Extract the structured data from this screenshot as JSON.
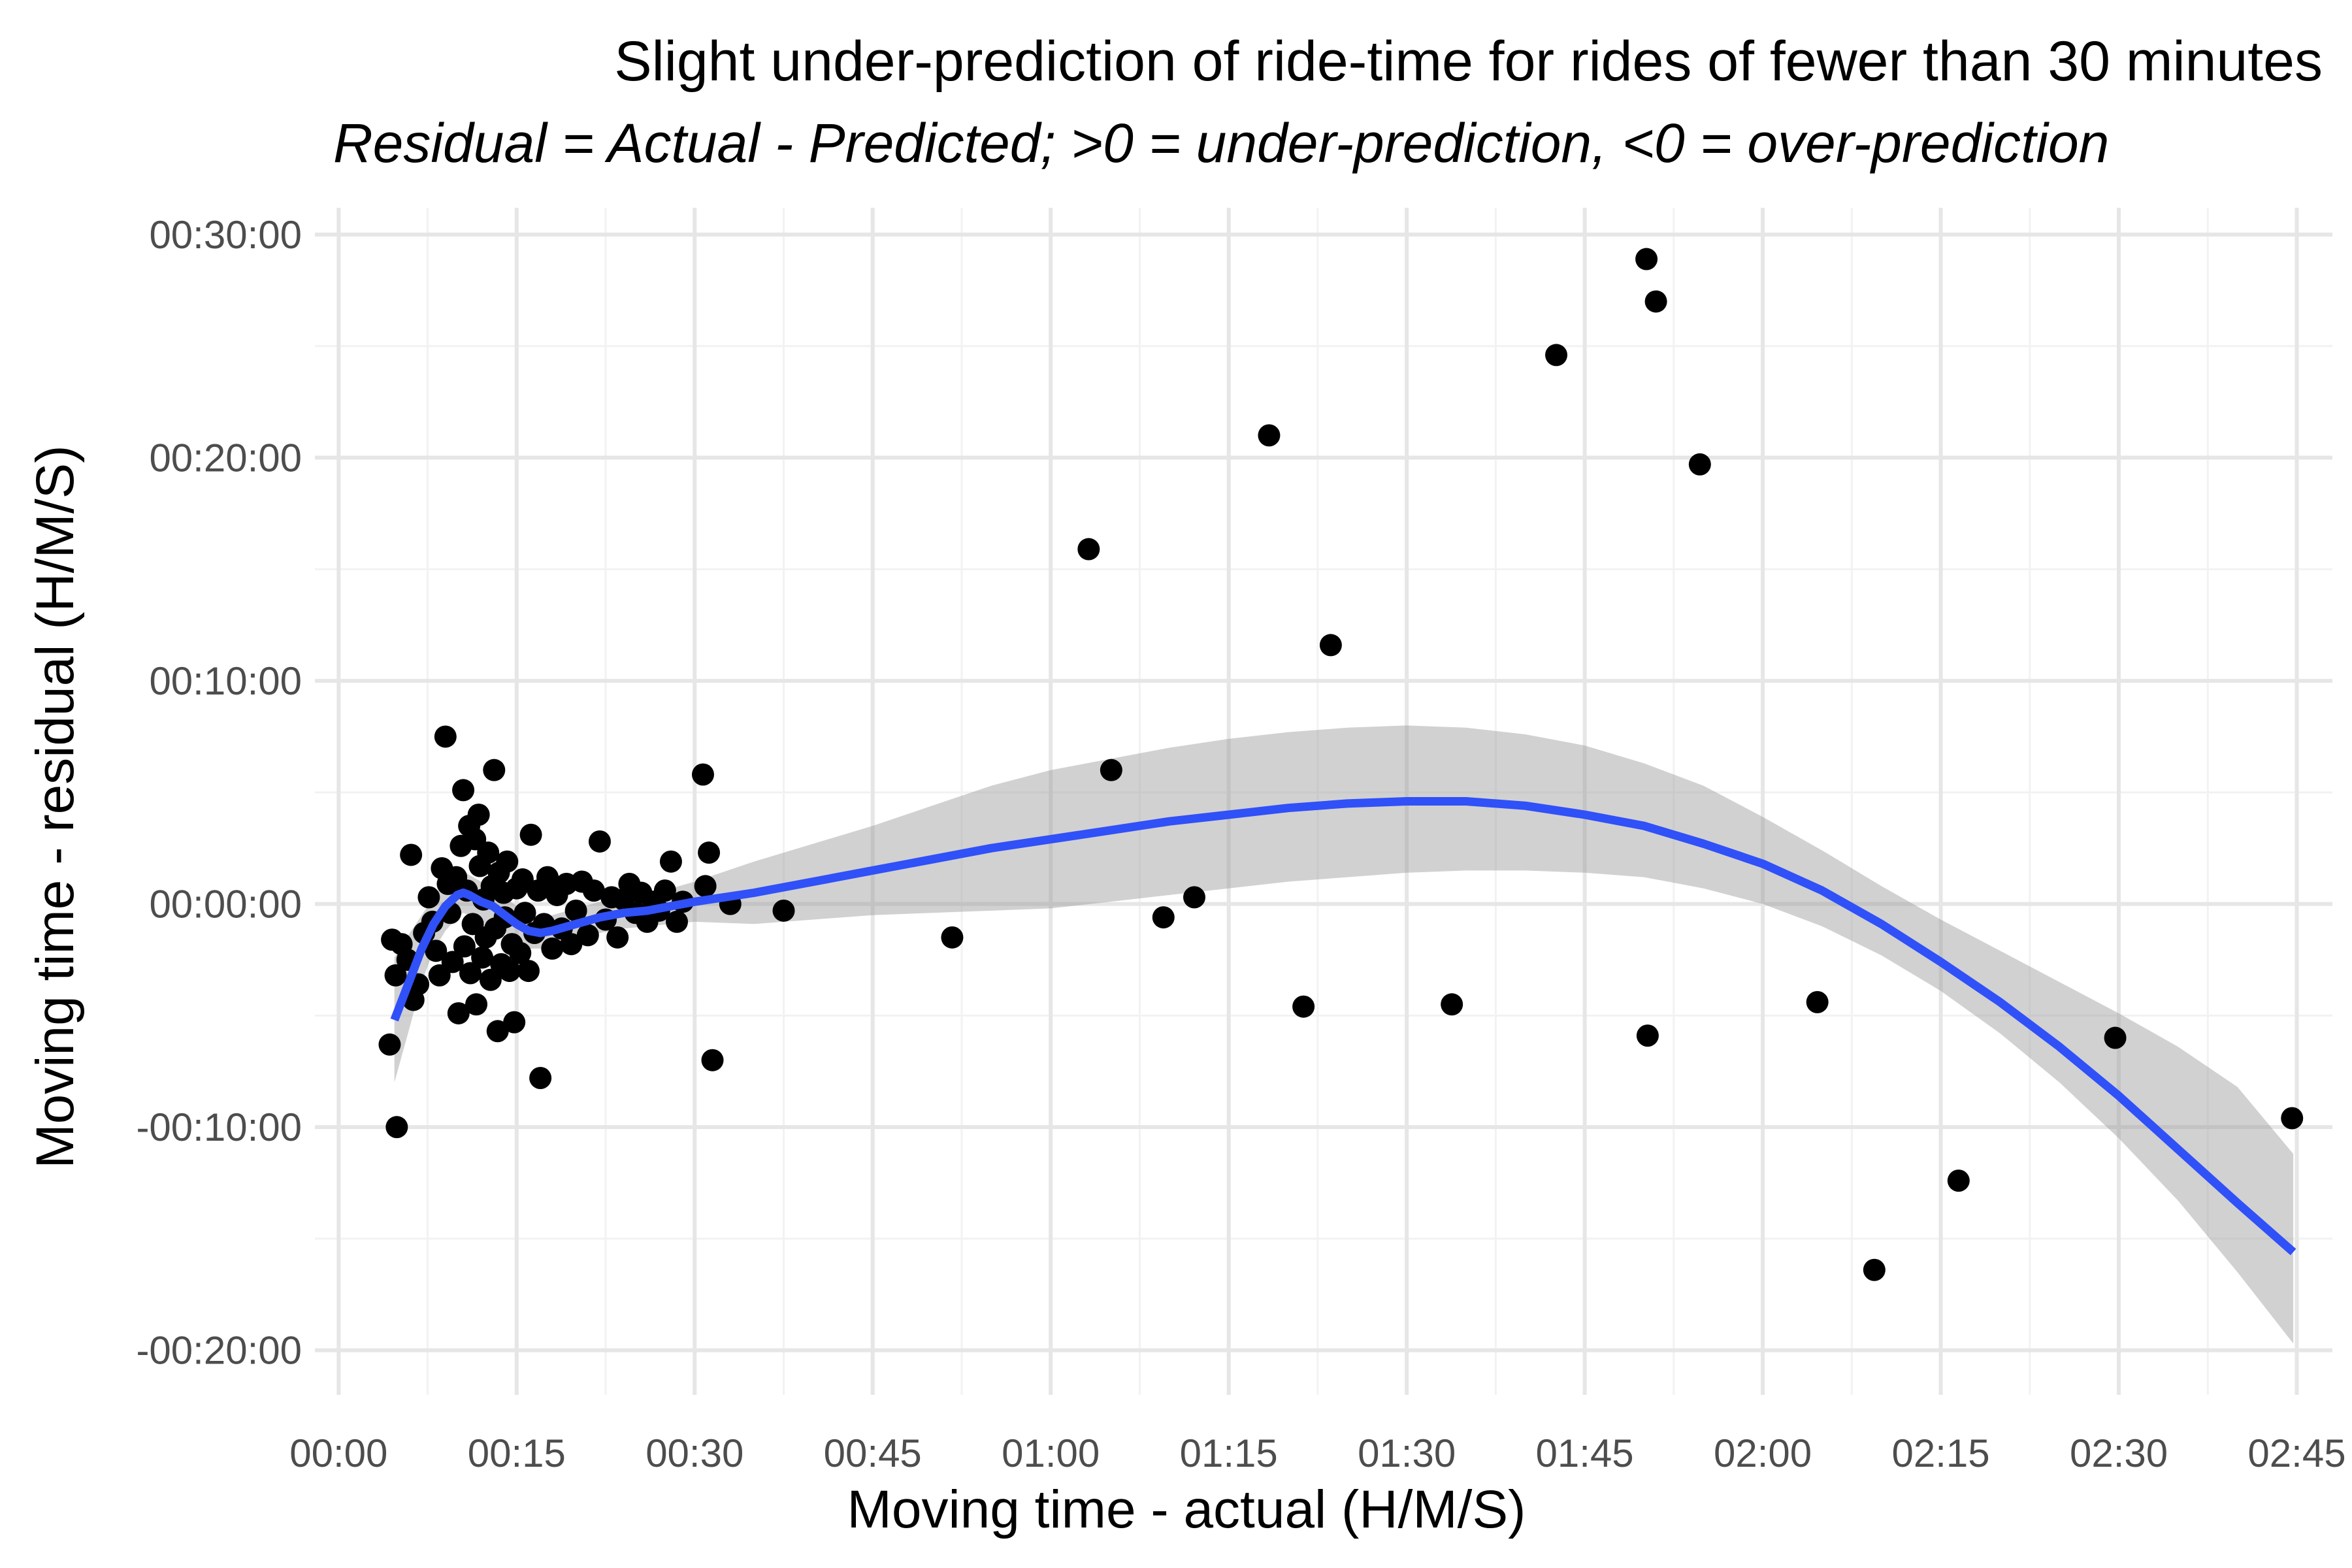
{
  "chart_data": {
    "type": "scatter",
    "title": "Slight under-prediction of ride-time for rides of fewer than 30 minutes",
    "subtitle": "Residual = Actual - Predicted; >0 = under-prediction, <0 = over-prediction",
    "xlabel": "Moving time - actual (H/M/S)",
    "ylabel": "Moving time - residual (H/M/S)",
    "x_unit": "minutes",
    "y_unit": "minutes",
    "xlim": [
      -2,
      168
    ],
    "ylim": [
      -22,
      31.2
    ],
    "x_ticks": [
      {
        "value": 0,
        "label": "00:00"
      },
      {
        "value": 15,
        "label": "00:15"
      },
      {
        "value": 30,
        "label": "00:30"
      },
      {
        "value": 45,
        "label": "00:45"
      },
      {
        "value": 60,
        "label": "01:00"
      },
      {
        "value": 75,
        "label": "01:15"
      },
      {
        "value": 90,
        "label": "01:30"
      },
      {
        "value": 105,
        "label": "01:45"
      },
      {
        "value": 120,
        "label": "02:00"
      },
      {
        "value": 135,
        "label": "02:15"
      },
      {
        "value": 150,
        "label": "02:30"
      },
      {
        "value": 165,
        "label": "02:45"
      }
    ],
    "y_ticks": [
      {
        "value": 30,
        "label": "00:30:00"
      },
      {
        "value": 20,
        "label": "00:20:00"
      },
      {
        "value": 10,
        "label": "00:10:00"
      },
      {
        "value": 0,
        "label": "00:00:00"
      },
      {
        "value": -10,
        "label": "-00:10:00"
      },
      {
        "value": -20,
        "label": "-00:20:00"
      }
    ],
    "grid": true,
    "points": [
      [
        4.3,
        -6.3
      ],
      [
        4.9,
        -10.0
      ],
      [
        4.5,
        -1.6
      ],
      [
        4.8,
        -3.2
      ],
      [
        5.3,
        -1.8
      ],
      [
        5.8,
        -2.5
      ],
      [
        6.1,
        2.2
      ],
      [
        6.3,
        -4.3
      ],
      [
        6.7,
        -3.6
      ],
      [
        7.2,
        -1.3
      ],
      [
        7.6,
        0.3
      ],
      [
        7.9,
        -0.8
      ],
      [
        8.2,
        -2.1
      ],
      [
        8.5,
        -3.2
      ],
      [
        8.7,
        1.6
      ],
      [
        9.0,
        7.5
      ],
      [
        9.2,
        0.9
      ],
      [
        9.4,
        -0.4
      ],
      [
        9.6,
        -2.6
      ],
      [
        9.9,
        1.2
      ],
      [
        10.1,
        -4.9
      ],
      [
        10.3,
        2.6
      ],
      [
        10.5,
        5.1
      ],
      [
        10.6,
        -1.9
      ],
      [
        10.8,
        0.6
      ],
      [
        11.0,
        3.5
      ],
      [
        11.1,
        -3.1
      ],
      [
        11.3,
        -0.9
      ],
      [
        11.5,
        2.9
      ],
      [
        11.6,
        -4.5
      ],
      [
        11.8,
        4.0
      ],
      [
        11.9,
        1.7
      ],
      [
        12.1,
        -2.4
      ],
      [
        12.2,
        0.2
      ],
      [
        12.4,
        -1.5
      ],
      [
        12.6,
        2.3
      ],
      [
        12.8,
        -3.4
      ],
      [
        12.9,
        0.8
      ],
      [
        13.1,
        6.0
      ],
      [
        13.2,
        -1.1
      ],
      [
        13.4,
        -5.7
      ],
      [
        13.5,
        1.4
      ],
      [
        13.7,
        -2.7
      ],
      [
        13.9,
        0.5
      ],
      [
        14.0,
        -0.6
      ],
      [
        14.2,
        1.9
      ],
      [
        14.4,
        -3.0
      ],
      [
        14.6,
        -1.8
      ],
      [
        14.8,
        -5.3
      ],
      [
        15.0,
        0.7
      ],
      [
        15.3,
        -2.2
      ],
      [
        15.5,
        1.1
      ],
      [
        15.7,
        -0.4
      ],
      [
        16.0,
        -3.0
      ],
      [
        16.2,
        3.1
      ],
      [
        16.5,
        -1.3
      ],
      [
        16.8,
        0.6
      ],
      [
        17.0,
        -7.8
      ],
      [
        17.3,
        -0.9
      ],
      [
        17.6,
        1.2
      ],
      [
        18.0,
        -2.0
      ],
      [
        18.4,
        0.4
      ],
      [
        18.8,
        -1.1
      ],
      [
        19.2,
        0.9
      ],
      [
        19.6,
        -1.8
      ],
      [
        20.0,
        -0.3
      ],
      [
        20.5,
        1.0
      ],
      [
        21.0,
        -1.4
      ],
      [
        21.5,
        0.6
      ],
      [
        22.0,
        2.8
      ],
      [
        22.5,
        -0.7
      ],
      [
        23.0,
        0.3
      ],
      [
        23.5,
        -1.5
      ],
      [
        24.0,
        0.2
      ],
      [
        24.5,
        0.9
      ],
      [
        25.0,
        -0.4
      ],
      [
        25.5,
        0.5
      ],
      [
        26.0,
        -0.8
      ],
      [
        26.5,
        0.1
      ],
      [
        27.0,
        -0.3
      ],
      [
        27.5,
        0.6
      ],
      [
        28.0,
        1.9
      ],
      [
        28.5,
        -0.8
      ],
      [
        29.0,
        0.1
      ],
      [
        30.7,
        5.8
      ],
      [
        30.9,
        0.8
      ],
      [
        31.2,
        2.3
      ],
      [
        31.5,
        -7.0
      ],
      [
        33.0,
        0.0
      ],
      [
        37.5,
        -0.3
      ],
      [
        51.7,
        -1.5
      ],
      [
        63.2,
        15.9
      ],
      [
        65.1,
        6.0
      ],
      [
        69.5,
        -0.6
      ],
      [
        72.1,
        0.3
      ],
      [
        78.4,
        21.0
      ],
      [
        81.3,
        -4.6
      ],
      [
        83.6,
        11.6
      ],
      [
        93.8,
        -4.5
      ],
      [
        102.6,
        24.6
      ],
      [
        110.2,
        28.9
      ],
      [
        110.3,
        -5.9
      ],
      [
        111.0,
        27.0
      ],
      [
        114.7,
        19.7
      ],
      [
        124.6,
        -4.4
      ],
      [
        129.4,
        -16.4
      ],
      [
        136.5,
        -12.4
      ],
      [
        149.7,
        -6.0
      ],
      [
        164.6,
        -9.6
      ]
    ],
    "smooth": {
      "method": "loess",
      "x": [
        4.7,
        6,
        7,
        8,
        9,
        10,
        10.5,
        11,
        12,
        13,
        14,
        15,
        16,
        17,
        18,
        20,
        22,
        24,
        26,
        28,
        30,
        35,
        40,
        45,
        50,
        55,
        60,
        65,
        70,
        75,
        80,
        85,
        90,
        95,
        100,
        105,
        110,
        115,
        120,
        125,
        130,
        135,
        140,
        145,
        150,
        155,
        160,
        164.7
      ],
      "y": [
        -5.2,
        -3.4,
        -2.0,
        -0.9,
        -0.1,
        0.4,
        0.5,
        0.4,
        0.1,
        -0.1,
        -0.5,
        -0.9,
        -1.2,
        -1.3,
        -1.2,
        -0.9,
        -0.6,
        -0.4,
        -0.3,
        -0.1,
        0.1,
        0.5,
        1.0,
        1.5,
        2.0,
        2.5,
        2.9,
        3.3,
        3.7,
        4.0,
        4.3,
        4.5,
        4.6,
        4.6,
        4.4,
        4.0,
        3.5,
        2.7,
        1.8,
        0.6,
        -0.9,
        -2.6,
        -4.4,
        -6.4,
        -8.6,
        -11.0,
        -13.4,
        -15.6
      ],
      "lower": [
        -8.0,
        -5.5,
        -3.5,
        -2.1,
        -1.2,
        -0.6,
        -0.4,
        -0.5,
        -0.8,
        -1.0,
        -1.3,
        -1.7,
        -2.0,
        -2.0,
        -1.9,
        -1.6,
        -1.3,
        -1.1,
        -1.0,
        -0.9,
        -0.8,
        -0.9,
        -0.7,
        -0.5,
        -0.4,
        -0.3,
        -0.2,
        0.1,
        0.4,
        0.7,
        1.0,
        1.2,
        1.4,
        1.5,
        1.5,
        1.4,
        1.2,
        0.7,
        0.0,
        -1.0,
        -2.3,
        -3.9,
        -5.8,
        -8.0,
        -10.5,
        -13.3,
        -16.5,
        -19.7
      ],
      "upper": [
        -2.4,
        -1.3,
        -0.5,
        0.3,
        1.0,
        1.4,
        1.5,
        1.3,
        1.0,
        0.8,
        0.3,
        -0.1,
        -0.4,
        -0.6,
        -0.5,
        -0.2,
        0.1,
        0.3,
        0.4,
        0.7,
        1.0,
        1.9,
        2.7,
        3.5,
        4.4,
        5.3,
        6.0,
        6.5,
        7.0,
        7.4,
        7.7,
        7.9,
        8.0,
        7.9,
        7.6,
        7.1,
        6.3,
        5.3,
        3.9,
        2.4,
        0.8,
        -0.7,
        -2.1,
        -3.5,
        -4.9,
        -6.4,
        -8.2,
        -11.2
      ]
    },
    "colors": {
      "points": "#000000",
      "smooth_line": "#3050f8",
      "ribbon": "#999999",
      "grid": "#e6e6e6",
      "tick_text": "#4d4d4d"
    }
  }
}
